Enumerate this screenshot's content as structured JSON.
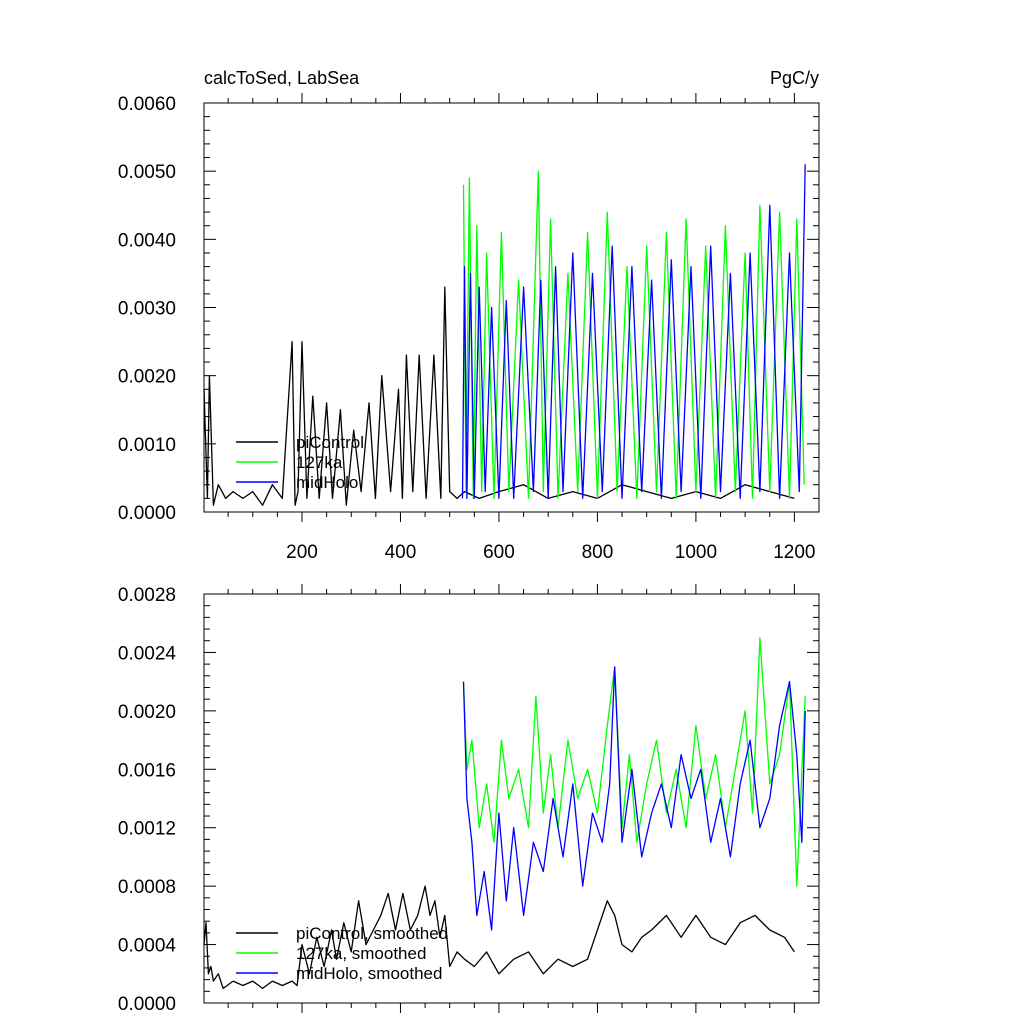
{
  "chart_data": [
    {
      "type": "line",
      "title": "calcToSed, LabSea",
      "units": "PgC/y",
      "xlim": [
        1,
        1250
      ],
      "ylim": [
        0,
        0.006
      ],
      "xticks": [
        200,
        400,
        600,
        800,
        1000,
        1200
      ],
      "xtick_labels": [
        "200",
        "400",
        "600",
        "800",
        "1000",
        "1200"
      ],
      "yticks": [
        0,
        0.001,
        0.002,
        0.003,
        0.004,
        0.005,
        0.006
      ],
      "ytick_labels": [
        "0.0000",
        "0.0010",
        "0.0020",
        "0.0030",
        "0.0040",
        "0.0050",
        "0.0060"
      ],
      "grid": false,
      "legend_position": "bottom-left",
      "series": [
        {
          "name": "piControl",
          "color": "#000000",
          "x": [
            1,
            8,
            12,
            20,
            30,
            45,
            60,
            80,
            100,
            120,
            140,
            160,
            180,
            186,
            192,
            200,
            210,
            222,
            235,
            250,
            262,
            278,
            290,
            305,
            320,
            336,
            349,
            362,
            380,
            396,
            404,
            412,
            425,
            438,
            452,
            468,
            482,
            490,
            500,
            515,
            530,
            560,
            600,
            650,
            700,
            750,
            800,
            850,
            900,
            950,
            1000,
            1050,
            1100,
            1150,
            1200
          ],
          "values": [
            0.0018,
            0.0002,
            0.002,
            0.0001,
            0.0004,
            0.0002,
            0.0003,
            0.0002,
            0.0003,
            0.0001,
            0.0004,
            0.0002,
            0.0025,
            0.0001,
            0.0003,
            0.0025,
            0.0002,
            0.0017,
            0.0002,
            0.0016,
            0.0002,
            0.0015,
            0.0001,
            0.0012,
            0.0003,
            0.0016,
            0.0002,
            0.002,
            0.0003,
            0.0018,
            0.0002,
            0.0023,
            0.0003,
            0.0023,
            0.0002,
            0.0023,
            0.0002,
            0.0033,
            0.0003,
            0.0002,
            0.0003,
            0.0002,
            0.0003,
            0.0004,
            0.0002,
            0.0003,
            0.0002,
            0.0004,
            0.0003,
            0.0002,
            0.0003,
            0.0002,
            0.0004,
            0.0003,
            0.0002
          ]
        },
        {
          "name": "127ka",
          "color": "#00ff00",
          "x": [
            528,
            533,
            540,
            548,
            555,
            565,
            575,
            590,
            605,
            620,
            640,
            660,
            680,
            690,
            705,
            720,
            740,
            760,
            780,
            800,
            820,
            840,
            860,
            880,
            900,
            920,
            940,
            960,
            980,
            1000,
            1020,
            1040,
            1060,
            1080,
            1100,
            1115,
            1130,
            1150,
            1170,
            1190,
            1205,
            1220
          ],
          "values": [
            0.0048,
            0.0003,
            0.0049,
            0.0002,
            0.0042,
            0.0003,
            0.0038,
            0.0002,
            0.0041,
            0.0003,
            0.0034,
            0.0002,
            0.005,
            0.0003,
            0.0043,
            0.0002,
            0.0035,
            0.0003,
            0.0041,
            0.0002,
            0.0044,
            0.0003,
            0.0036,
            0.0002,
            0.0039,
            0.0003,
            0.0041,
            0.0002,
            0.0043,
            0.0003,
            0.0039,
            0.0002,
            0.0042,
            0.0003,
            0.0038,
            0.0002,
            0.0045,
            0.0003,
            0.0044,
            0.0002,
            0.0043,
            0.0004
          ]
        },
        {
          "name": "midHolo",
          "color": "#0000ff",
          "x": [
            526,
            530,
            535,
            542,
            550,
            560,
            572,
            585,
            600,
            615,
            630,
            650,
            670,
            685,
            700,
            715,
            730,
            750,
            770,
            790,
            810,
            830,
            850,
            870,
            890,
            910,
            930,
            950,
            970,
            990,
            1010,
            1030,
            1050,
            1070,
            1090,
            1110,
            1130,
            1150,
            1170,
            1190,
            1210,
            1222
          ],
          "values": [
            0.0002,
            0.0036,
            0.0002,
            0.0035,
            0.0002,
            0.0033,
            0.0003,
            0.003,
            0.0002,
            0.0031,
            0.0002,
            0.0033,
            0.0003,
            0.0034,
            0.0002,
            0.0036,
            0.0003,
            0.0038,
            0.0002,
            0.0035,
            0.0003,
            0.0039,
            0.0002,
            0.0036,
            0.0003,
            0.0034,
            0.0002,
            0.0037,
            0.0003,
            0.0036,
            0.0002,
            0.0039,
            0.0003,
            0.0035,
            0.0002,
            0.0038,
            0.0003,
            0.0045,
            0.0002,
            0.0038,
            0.0003,
            0.0051
          ]
        }
      ]
    },
    {
      "type": "line",
      "title": "",
      "units": "",
      "xlim": [
        1,
        1250
      ],
      "ylim": [
        0,
        0.0028
      ],
      "xticks": [
        200,
        400,
        600,
        800,
        1000,
        1200
      ],
      "xtick_labels": [
        "",
        "",
        "",
        "",
        "",
        ""
      ],
      "yticks": [
        0,
        0.0004,
        0.0008,
        0.0012,
        0.0016,
        0.002,
        0.0024,
        0.0028
      ],
      "ytick_labels": [
        "0.0000",
        "0.0004",
        "0.0008",
        "0.0012",
        "0.0016",
        "0.0020",
        "0.0024",
        "0.0028"
      ],
      "grid": false,
      "legend_position": "bottom-left",
      "series": [
        {
          "name": "piControl, smoothed",
          "color": "#000000",
          "x": [
            1,
            5,
            10,
            15,
            20,
            30,
            40,
            60,
            80,
            100,
            120,
            140,
            160,
            180,
            190,
            200,
            215,
            230,
            245,
            260,
            270,
            285,
            300,
            315,
            330,
            345,
            360,
            375,
            390,
            405,
            420,
            435,
            450,
            460,
            470,
            480,
            490,
            500,
            515,
            530,
            550,
            575,
            600,
            630,
            660,
            690,
            720,
            750,
            780,
            800,
            820,
            835,
            850,
            870,
            890,
            910,
            940,
            970,
            1000,
            1030,
            1060,
            1090,
            1120,
            1150,
            1180,
            1200
          ],
          "values": [
            0.0004,
            0.00055,
            0.0002,
            0.00025,
            0.00015,
            0.0002,
            0.0001,
            0.00015,
            0.00012,
            0.00015,
            0.0001,
            0.00015,
            0.00012,
            0.00015,
            0.00012,
            0.0004,
            0.0002,
            0.00045,
            0.00025,
            0.0005,
            0.0003,
            0.00055,
            0.00035,
            0.0007,
            0.0004,
            0.0005,
            0.0006,
            0.00075,
            0.0005,
            0.00075,
            0.0005,
            0.0006,
            0.0008,
            0.0006,
            0.0007,
            0.00045,
            0.0006,
            0.00025,
            0.00035,
            0.0003,
            0.00025,
            0.00035,
            0.0002,
            0.0003,
            0.00035,
            0.0002,
            0.0003,
            0.00025,
            0.0003,
            0.0005,
            0.0007,
            0.0006,
            0.0004,
            0.00035,
            0.00045,
            0.0005,
            0.0006,
            0.00045,
            0.0006,
            0.00045,
            0.0004,
            0.00055,
            0.0006,
            0.0005,
            0.00045,
            0.00035
          ]
        },
        {
          "name": "127ka, smoothed",
          "color": "#00ff00",
          "x": [
            528,
            535,
            545,
            560,
            575,
            590,
            605,
            620,
            640,
            660,
            675,
            690,
            705,
            720,
            740,
            760,
            780,
            800,
            820,
            835,
            850,
            865,
            880,
            900,
            920,
            940,
            960,
            980,
            1000,
            1020,
            1040,
            1060,
            1080,
            1100,
            1115,
            1130,
            1150,
            1170,
            1190,
            1205,
            1222
          ],
          "values": [
            0.0022,
            0.0016,
            0.0018,
            0.0012,
            0.0015,
            0.0011,
            0.0018,
            0.0014,
            0.0016,
            0.0012,
            0.0021,
            0.0013,
            0.0017,
            0.0012,
            0.0018,
            0.0014,
            0.0016,
            0.0013,
            0.0019,
            0.0023,
            0.0012,
            0.0017,
            0.0011,
            0.0015,
            0.0018,
            0.0013,
            0.0016,
            0.0012,
            0.0019,
            0.0014,
            0.0017,
            0.0012,
            0.0016,
            0.002,
            0.0013,
            0.0025,
            0.0015,
            0.0017,
            0.0022,
            0.0008,
            0.0021
          ]
        },
        {
          "name": "midHolo, smoothed",
          "color": "#0000ff",
          "x": [
            528,
            535,
            545,
            555,
            570,
            585,
            600,
            615,
            630,
            650,
            670,
            690,
            710,
            730,
            750,
            770,
            790,
            810,
            825,
            835,
            850,
            870,
            890,
            910,
            930,
            950,
            970,
            990,
            1010,
            1030,
            1050,
            1070,
            1090,
            1110,
            1130,
            1150,
            1170,
            1190,
            1205,
            1215,
            1222
          ],
          "values": [
            0.0022,
            0.0014,
            0.0011,
            0.0006,
            0.0009,
            0.0005,
            0.0013,
            0.0007,
            0.0012,
            0.0006,
            0.0011,
            0.0009,
            0.0014,
            0.001,
            0.0015,
            0.0008,
            0.0013,
            0.0011,
            0.0015,
            0.0023,
            0.0011,
            0.0016,
            0.001,
            0.0013,
            0.0015,
            0.0012,
            0.0017,
            0.0014,
            0.0016,
            0.0011,
            0.0014,
            0.001,
            0.0015,
            0.0018,
            0.0012,
            0.0014,
            0.0019,
            0.0022,
            0.0017,
            0.0011,
            0.002
          ]
        }
      ]
    }
  ]
}
